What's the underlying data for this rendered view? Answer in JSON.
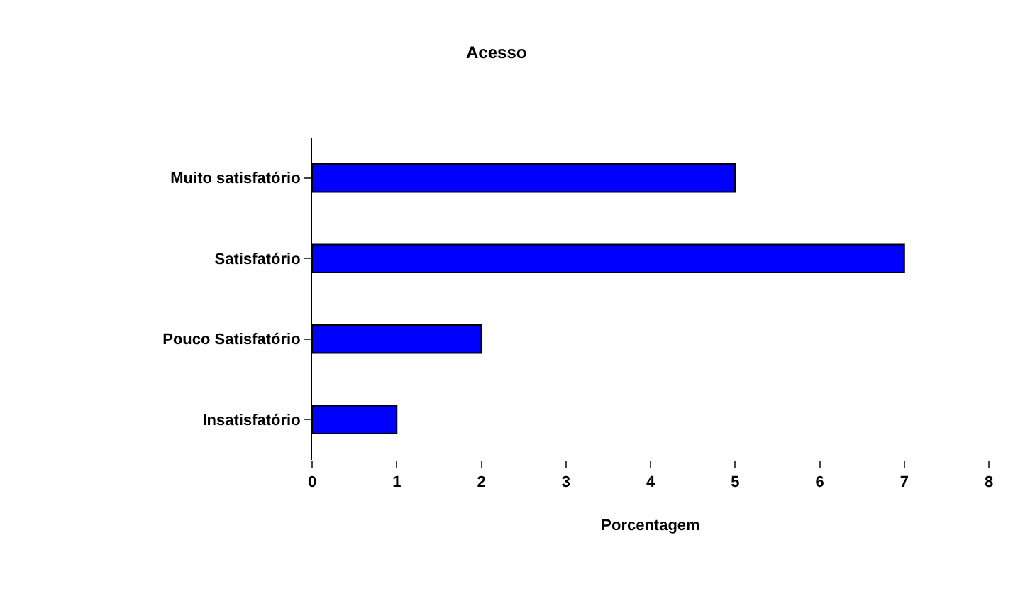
{
  "chart_data": {
    "type": "bar",
    "orientation": "horizontal",
    "title": "Acesso",
    "xlabel": "Porcentagem",
    "categories": [
      "Muito satisfatório",
      "Satisfatório",
      "Pouco Satisfatório",
      "Insatisfatório"
    ],
    "values": [
      5,
      7,
      2,
      1
    ],
    "color": "#0000ff",
    "xlim": [
      0,
      8
    ],
    "xticks": [
      0,
      1,
      2,
      3,
      4,
      5,
      6,
      7,
      8
    ],
    "legend": false
  }
}
